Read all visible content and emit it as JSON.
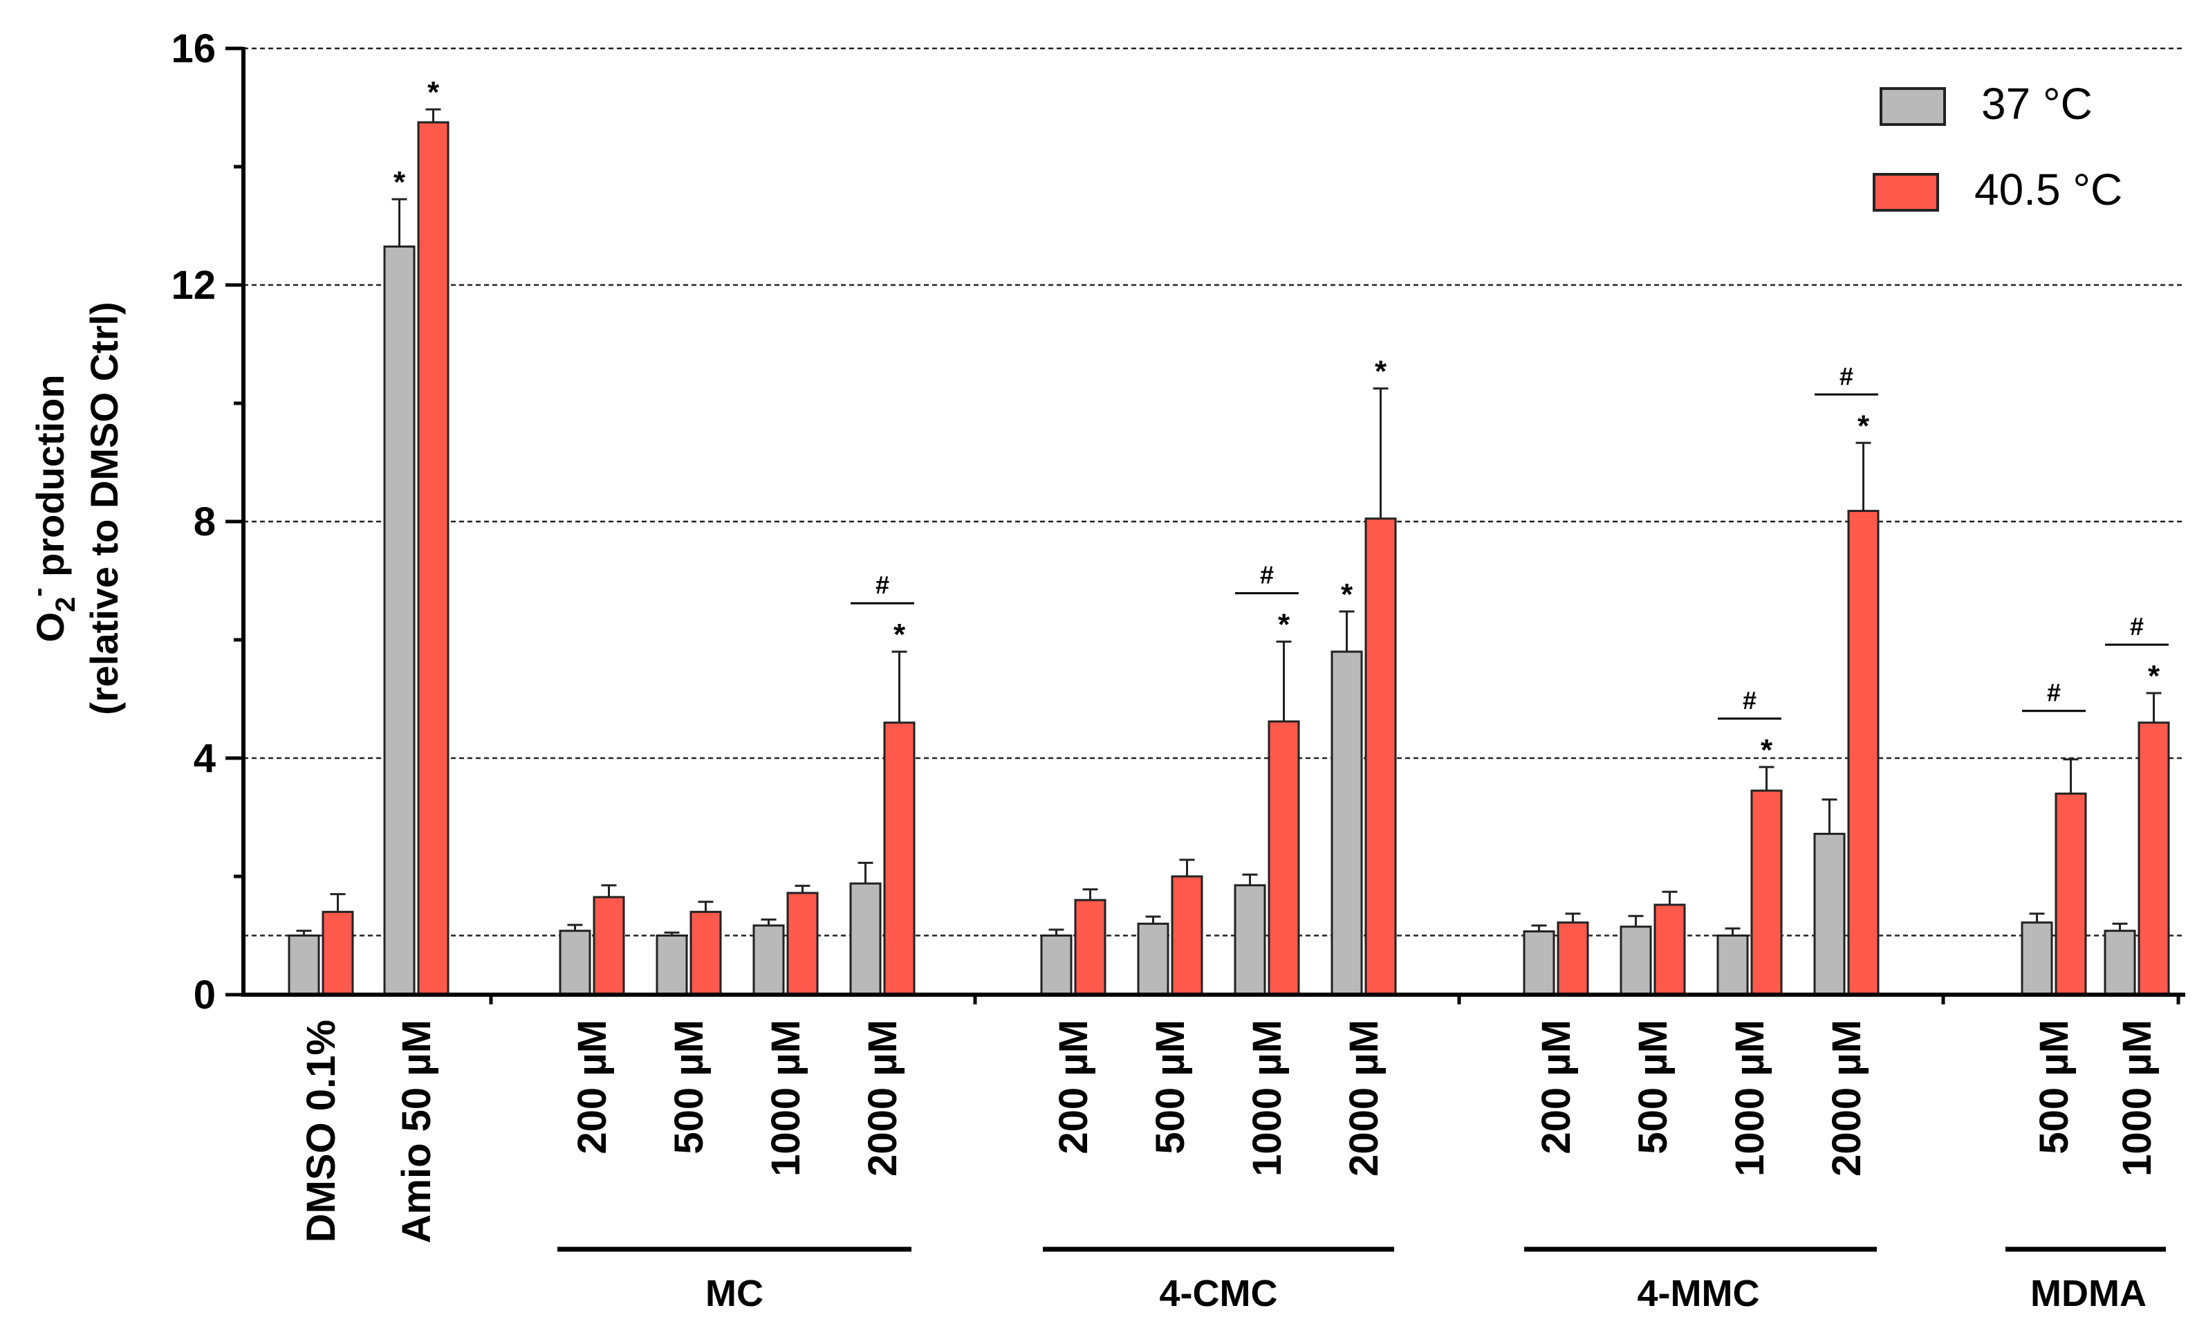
{
  "chart_data": {
    "type": "bar",
    "ylabel": "O2- production",
    "ylabel_base": "O",
    "ylabel_sub": "2",
    "ylabel_sup": "-",
    "ylabel_rest": " production",
    "ylabel_line2": "(relative to DMSO Ctrl)",
    "ylim": [
      0,
      16
    ],
    "yticks": [
      "0",
      "4",
      "8",
      "12",
      "16"
    ],
    "gridlines": [
      1,
      4,
      8,
      12,
      16
    ],
    "legend": {
      "position": "top-right",
      "entries": [
        {
          "name": "37 °C",
          "color": "#b9b9b9"
        },
        {
          "name": "40.5 °C",
          "color": "#ff5a4b"
        }
      ]
    },
    "series_colors": [
      "#b9b9b9",
      "#ff5a4b"
    ],
    "groups": [
      {
        "label": "",
        "categories": [
          {
            "label": "DMSO 0.1%",
            "values": [
              1.0,
              1.4
            ],
            "errors": [
              0.08,
              0.3
            ],
            "stars": [
              false,
              false
            ],
            "hash": false
          },
          {
            "label": "Amio 50 µM",
            "values": [
              12.65,
              14.75
            ],
            "errors": [
              0.8,
              0.22
            ],
            "stars": [
              true,
              true
            ],
            "hash": false
          }
        ]
      },
      {
        "label": "MC",
        "categories": [
          {
            "label": "200 µM",
            "values": [
              1.08,
              1.65
            ],
            "errors": [
              0.1,
              0.2
            ],
            "stars": [
              false,
              false
            ],
            "hash": false
          },
          {
            "label": "500 µM",
            "values": [
              1.0,
              1.4
            ],
            "errors": [
              0.05,
              0.17
            ],
            "stars": [
              false,
              false
            ],
            "hash": false
          },
          {
            "label": "1000 µM",
            "values": [
              1.17,
              1.72
            ],
            "errors": [
              0.1,
              0.12
            ],
            "stars": [
              false,
              false
            ],
            "hash": false
          },
          {
            "label": "2000 µM",
            "values": [
              1.88,
              4.6
            ],
            "errors": [
              0.35,
              1.2
            ],
            "stars": [
              false,
              true
            ],
            "hash": true
          }
        ]
      },
      {
        "label": "4-CMC",
        "categories": [
          {
            "label": "200 µM",
            "values": [
              1.0,
              1.6
            ],
            "errors": [
              0.1,
              0.18
            ],
            "stars": [
              false,
              false
            ],
            "hash": false
          },
          {
            "label": "500 µM",
            "values": [
              1.2,
              2.0
            ],
            "errors": [
              0.12,
              0.28
            ],
            "stars": [
              false,
              false
            ],
            "hash": false
          },
          {
            "label": "1000 µM",
            "values": [
              1.85,
              4.62
            ],
            "errors": [
              0.18,
              1.35
            ],
            "stars": [
              false,
              true
            ],
            "hash": true
          },
          {
            "label": "2000 µM",
            "values": [
              5.8,
              8.05
            ],
            "errors": [
              0.68,
              2.2
            ],
            "stars": [
              true,
              true
            ],
            "hash": false
          }
        ]
      },
      {
        "label": "4-MMC",
        "categories": [
          {
            "label": "200 µM",
            "values": [
              1.07,
              1.22
            ],
            "errors": [
              0.1,
              0.15
            ],
            "stars": [
              false,
              false
            ],
            "hash": false
          },
          {
            "label": "500 µM",
            "values": [
              1.15,
              1.52
            ],
            "errors": [
              0.18,
              0.22
            ],
            "stars": [
              false,
              false
            ],
            "hash": false
          },
          {
            "label": "1000 µM",
            "values": [
              1.0,
              3.45
            ],
            "errors": [
              0.12,
              0.4
            ],
            "stars": [
              false,
              true
            ],
            "hash": true
          },
          {
            "label": "2000 µM",
            "values": [
              2.72,
              8.18
            ],
            "errors": [
              0.58,
              1.15
            ],
            "stars": [
              false,
              true
            ],
            "hash": true
          }
        ]
      },
      {
        "label": "MDMA",
        "categories": [
          {
            "label": "500 µM",
            "values": [
              1.22,
              3.4
            ],
            "errors": [
              0.15,
              0.58
            ],
            "stars": [
              false,
              false
            ],
            "hash": true
          },
          {
            "label": "1000 µM",
            "values": [
              1.08,
              4.6
            ],
            "errors": [
              0.12,
              0.5
            ],
            "stars": [
              false,
              true
            ],
            "hash": true
          }
        ]
      }
    ],
    "star_symbol": "*",
    "hash_symbol": "#"
  }
}
